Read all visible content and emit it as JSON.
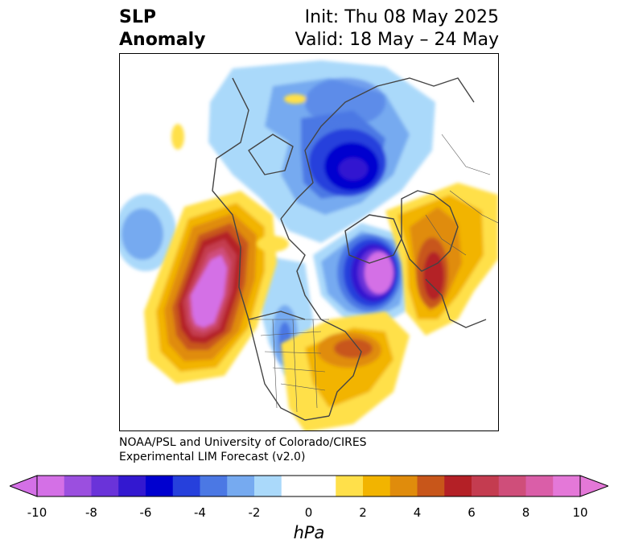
{
  "header": {
    "variable_line1": "SLP",
    "variable_line2": "Anomaly",
    "init_line": "Init: Thu 08 May 2025",
    "valid_line": "Valid: 18 May – 24 May"
  },
  "credit": {
    "line1": "NOAA/PSL and University of Colorado/CIRES",
    "line2": "Experimental LIM Forecast (v2.0)"
  },
  "colorbar": {
    "unit": "hPa",
    "ticks": [
      "-10",
      "-8",
      "-6",
      "-4",
      "-2",
      "0",
      "2",
      "4",
      "6",
      "8",
      "10"
    ],
    "colors": [
      "#d470e6",
      "#9b4fdf",
      "#6a33d9",
      "#3318d0",
      "#0000cf",
      "#2640dc",
      "#4b78e4",
      "#76aaf0",
      "#aad9fa",
      "#ffffff",
      "#ffffff",
      "#ffe04a",
      "#f2b400",
      "#e08c0c",
      "#c8561a",
      "#b42026",
      "#c43c50",
      "#cf4e7a",
      "#da5ea8",
      "#e478d8"
    ],
    "extend_low_color": "#d470e6",
    "extend_high_color": "#e478d8"
  },
  "map": {
    "projection": "north-polar-stereographic",
    "features": [
      {
        "kind": "low",
        "region": "Arctic / North Pole",
        "center_hpa": -6
      },
      {
        "kind": "low",
        "region": "North Atlantic (south of Greenland)",
        "center_hpa": -10
      },
      {
        "kind": "high",
        "region": "Northeast Pacific (off western North America)",
        "center_hpa": 10
      },
      {
        "kind": "high",
        "region": "Northern Europe",
        "center_hpa": 6
      },
      {
        "kind": "high",
        "region": "Eastern North America",
        "center_hpa": 4
      },
      {
        "kind": "low",
        "region": "Central North America",
        "center_hpa": -4
      },
      {
        "kind": "low",
        "region": "Central Pacific",
        "center_hpa": -3
      }
    ]
  }
}
